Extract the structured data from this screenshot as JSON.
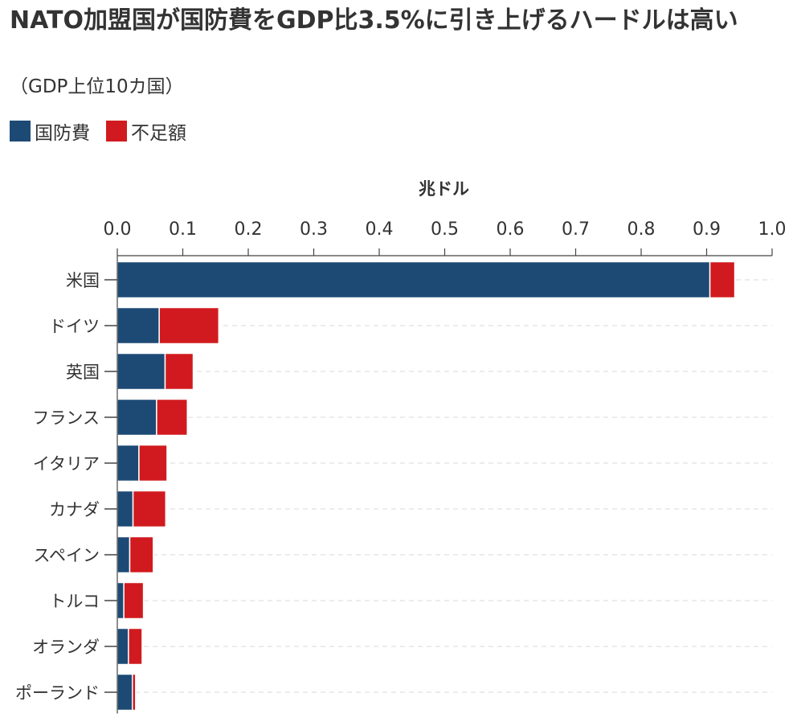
{
  "title": "NATO加盟国が国防費をGDP比3.5%に引き上げるハードルは高い",
  "subtitle": "（GDP上位10カ国）",
  "legend": [
    {
      "label": "国防費",
      "color": "#1d4a75"
    },
    {
      "label": "不足額",
      "color": "#d11a1f"
    }
  ],
  "chart_data": {
    "type": "bar",
    "orientation": "horizontal",
    "stacked": true,
    "xlabel": "兆ドル",
    "xlim": [
      0,
      1.0
    ],
    "xticks": [
      "0.0",
      "0.1",
      "0.2",
      "0.3",
      "0.4",
      "0.5",
      "0.6",
      "0.7",
      "0.8",
      "0.9",
      "1.0"
    ],
    "categories": [
      "米国",
      "ドイツ",
      "英国",
      "フランス",
      "イタリア",
      "カナダ",
      "スペイン",
      "トルコ",
      "オランダ",
      "ポーランド"
    ],
    "series": [
      {
        "name": "国防費",
        "color": "#1d4a75",
        "values": [
          0.905,
          0.064,
          0.073,
          0.06,
          0.033,
          0.024,
          0.019,
          0.01,
          0.017,
          0.023
        ]
      },
      {
        "name": "不足額",
        "color": "#d11a1f",
        "values": [
          0.038,
          0.091,
          0.043,
          0.047,
          0.043,
          0.05,
          0.036,
          0.03,
          0.021,
          0.005
        ]
      }
    ],
    "grid": true,
    "legend_position": "top-left"
  }
}
